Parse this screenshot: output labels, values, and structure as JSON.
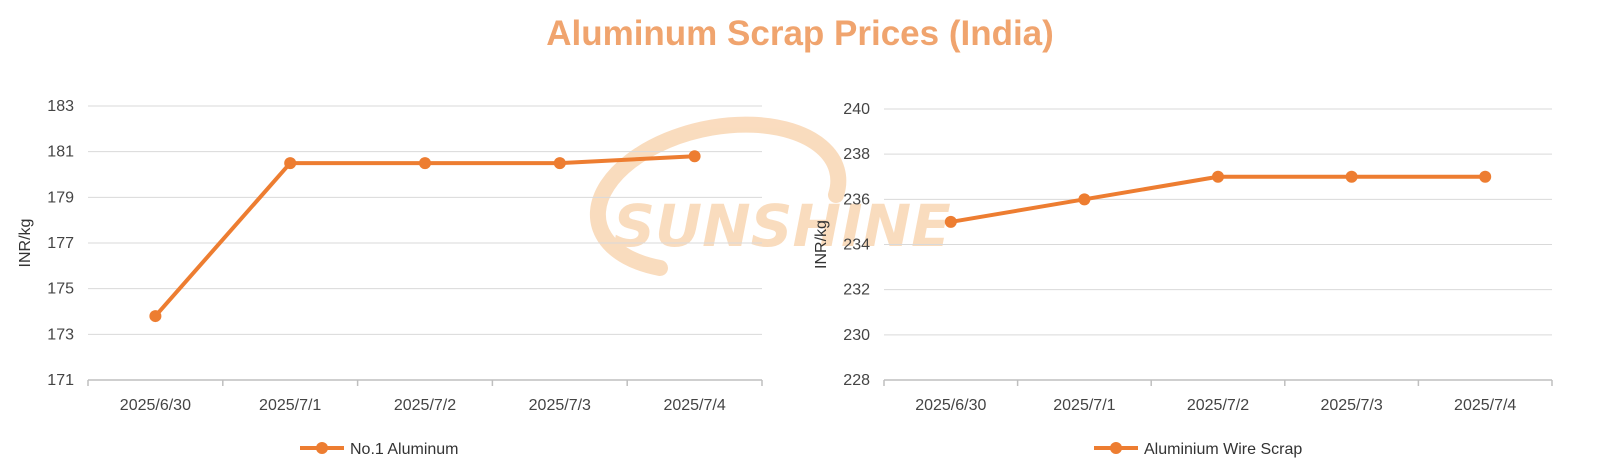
{
  "title": "Aluminum Scrap Prices (India)",
  "colors": {
    "title": "#f0a46e",
    "line": "#ed7d31",
    "grid": "#d9d9d9",
    "axis": "#bfbfbf",
    "watermark": "#f5c08a"
  },
  "watermark": "SUNSHINE",
  "chart_data": [
    {
      "type": "line",
      "x": [
        "2025/6/30",
        "2025/7/1",
        "2025/7/2",
        "2025/7/3",
        "2025/7/4"
      ],
      "series": [
        {
          "name": "No.1 Aluminum",
          "values": [
            173.8,
            180.5,
            180.5,
            180.5,
            180.8
          ]
        }
      ],
      "ylabel": "INR/kg",
      "ylim": [
        171,
        183
      ],
      "yticks": [
        171,
        173,
        175,
        177,
        179,
        181,
        183
      ],
      "grid": true,
      "legend": "bottom"
    },
    {
      "type": "line",
      "x": [
        "2025/6/30",
        "2025/7/1",
        "2025/7/2",
        "2025/7/3",
        "2025/7/4"
      ],
      "series": [
        {
          "name": "Aluminium Wire Scrap",
          "values": [
            235,
            236,
            237,
            237,
            237
          ]
        }
      ],
      "ylabel": "INR/kg",
      "ylim": [
        228,
        240
      ],
      "yticks": [
        228,
        230,
        232,
        234,
        236,
        238,
        240
      ],
      "grid": true,
      "legend": "bottom"
    }
  ]
}
